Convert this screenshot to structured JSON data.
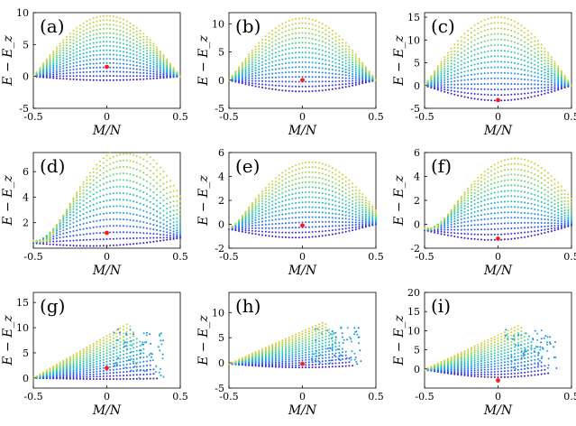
{
  "chart_data": [
    {
      "panel": "a",
      "label": "(a)",
      "type": "scatter",
      "xlabel": "M/N",
      "ylabel": "E − E_z",
      "xlim": [
        -0.5,
        0.5
      ],
      "ylim": [
        -5,
        10
      ],
      "xticks": [
        "-0.5",
        "0",
        "0.5"
      ],
      "yticks": [
        "-5",
        "0",
        "5",
        "10"
      ],
      "bands": 16,
      "top": 9.5,
      "shape": "cos",
      "floor": 0.0,
      "dip": 0.6,
      "tilt": 0.0,
      "center": 1.5,
      "scatter_tail": 0
    },
    {
      "panel": "b",
      "label": "(b)",
      "type": "scatter",
      "xlabel": "M/N",
      "ylabel": "E − E_z",
      "xlim": [
        -0.5,
        0.5
      ],
      "ylim": [
        -5,
        12
      ],
      "xticks": [
        "-0.5",
        "0",
        "0.5"
      ],
      "yticks": [
        "-5",
        "0",
        "5",
        "10"
      ],
      "bands": 16,
      "top": 11.0,
      "shape": "cos",
      "floor": 0.0,
      "dip": 2.0,
      "tilt": 0.0,
      "center": 0.0,
      "scatter_tail": 0
    },
    {
      "panel": "c",
      "label": "(c)",
      "type": "scatter",
      "xlabel": "M/N",
      "ylabel": "E − E_z",
      "xlim": [
        -0.5,
        0.5
      ],
      "ylim": [
        -5,
        16
      ],
      "xticks": [
        "-0.5",
        "0",
        "0.5"
      ],
      "yticks": [
        "-5",
        "0",
        "5",
        "10",
        "15"
      ],
      "bands": 16,
      "top": 15.0,
      "shape": "cos",
      "floor": 0.0,
      "dip": 3.3,
      "tilt": 0.0,
      "center": -3.2,
      "scatter_tail": 0
    },
    {
      "panel": "d",
      "label": "(d)",
      "type": "scatter",
      "xlabel": "M/N",
      "ylabel": "E − E_z",
      "xlim": [
        -0.5,
        0.5
      ],
      "ylim": [
        0,
        7.5
      ],
      "xticks": [
        "-0.5",
        "0",
        "0.5"
      ],
      "yticks": [
        "2",
        "4",
        "6"
      ],
      "bands": 16,
      "top": 7.3,
      "shape": "tilt",
      "floor": 0.6,
      "dip": 0.4,
      "tilt": 0.14,
      "center": 1.2,
      "scatter_tail": 0
    },
    {
      "panel": "e",
      "label": "(e)",
      "type": "scatter",
      "xlabel": "M/N",
      "ylabel": "E − E_z",
      "xlim": [
        -0.5,
        0.5
      ],
      "ylim": [
        -2,
        6
      ],
      "xticks": [
        "-0.5",
        "0",
        "0.5"
      ],
      "yticks": [
        "-2",
        "0",
        "2",
        "4",
        "6"
      ],
      "bands": 16,
      "top": 5.4,
      "shape": "tilt",
      "floor": -0.2,
      "dip": 0.9,
      "tilt": 0.06,
      "center": -0.1,
      "scatter_tail": 0
    },
    {
      "panel": "f",
      "label": "(f)",
      "type": "scatter",
      "xlabel": "M/N",
      "ylabel": "E − E_z",
      "xlim": [
        -0.5,
        0.5
      ],
      "ylim": [
        -2,
        6
      ],
      "xticks": [
        "-0.5",
        "0",
        "0.5"
      ],
      "yticks": [
        "-2",
        "0",
        "2",
        "4",
        "6"
      ],
      "bands": 16,
      "top": 5.8,
      "shape": "tilt",
      "floor": -0.3,
      "dip": 1.0,
      "tilt": 0.12,
      "center": -1.2,
      "scatter_tail": 0
    },
    {
      "panel": "g",
      "label": "(g)",
      "type": "scatter",
      "xlabel": "M/N",
      "ylabel": "E − E_z",
      "xlim": [
        -0.5,
        0.5
      ],
      "ylim": [
        -2,
        17
      ],
      "xticks": [
        "-0.5",
        "0",
        "0.5"
      ],
      "yticks": [
        "0",
        "5",
        "10",
        "15"
      ],
      "bands": 16,
      "top": 13.0,
      "shape": "ramp",
      "floor": 0.0,
      "dip": 0.3,
      "tilt": 0.0,
      "center": 2.0,
      "scatter_tail": 1
    },
    {
      "panel": "h",
      "label": "(h)",
      "type": "scatter",
      "xlabel": "M/N",
      "ylabel": "E − E_z",
      "xlim": [
        -0.5,
        0.5
      ],
      "ylim": [
        -5,
        14
      ],
      "xticks": [
        "-0.5",
        "0",
        "0.5"
      ],
      "yticks": [
        "-5",
        "0",
        "5",
        "10"
      ],
      "bands": 16,
      "top": 10.0,
      "shape": "ramp",
      "floor": -0.2,
      "dip": 1.0,
      "tilt": 0.0,
      "center": -0.2,
      "scatter_tail": 1
    },
    {
      "panel": "i",
      "label": "(i)",
      "type": "scatter",
      "xlabel": "M/N",
      "ylabel": "E − E_z",
      "xlim": [
        -0.5,
        0.5
      ],
      "ylim": [
        -5,
        20
      ],
      "xticks": [
        "-0.5",
        "0",
        "0.5"
      ],
      "yticks": [
        "0",
        "5",
        "10",
        "15",
        "20"
      ],
      "bands": 16,
      "top": 14.0,
      "shape": "ramp",
      "floor": -0.2,
      "dip": 2.8,
      "tilt": 0.0,
      "center": -3.0,
      "scatter_tail": 1
    }
  ],
  "colors": {
    "colormap": [
      "#3b0fbf",
      "#2a50f0",
      "#1f86f2",
      "#16b2d5",
      "#28c9a5",
      "#68d670",
      "#b2d448",
      "#e6c838"
    ],
    "marker": "#ff1a1a"
  }
}
